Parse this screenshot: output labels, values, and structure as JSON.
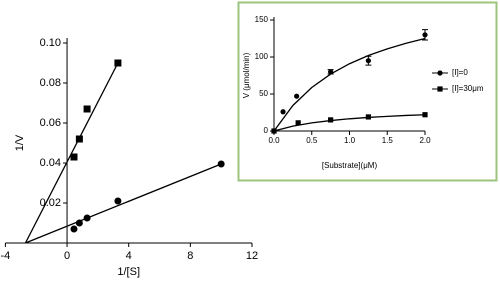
{
  "chart_data": [
    {
      "type": "scatter",
      "ylabel": "1/V",
      "xlabel": "1/[S]",
      "xlim": [
        -4,
        12
      ],
      "ylim": [
        0,
        0.1
      ],
      "xticks": [
        -4,
        0,
        4,
        8,
        12
      ],
      "yticks": [
        0.02,
        0.04,
        0.06,
        0.08,
        {
          "value": 0.1,
          "label": "0.10"
        }
      ],
      "series": [
        {
          "marker": "square",
          "color": "#000000",
          "x": [
            0.45,
            0.8,
            1.3,
            3.3
          ],
          "values": [
            0.043,
            0.052,
            0.067,
            0.09
          ],
          "fit_x": [
            -2.7,
            3.3
          ],
          "fit_y": [
            0,
            0.09
          ]
        },
        {
          "marker": "circle",
          "color": "#000000",
          "x": [
            0.45,
            0.8,
            1.3,
            3.3,
            10
          ],
          "values": [
            0.007,
            0.01,
            0.0125,
            0.021,
            0.0395
          ],
          "fit_x": [
            -2.7,
            10
          ],
          "fit_y": [
            0,
            0.0395
          ]
        }
      ]
    },
    {
      "type": "scatter",
      "ylabel": "V (μmol/min)",
      "xlabel": "[Substrate](μM)",
      "xlim": [
        0,
        2
      ],
      "ylim": [
        0,
        150
      ],
      "xticks": [
        {
          "value": 0,
          "label": "0.0"
        },
        0.5,
        {
          "value": 1,
          "label": "1.0"
        },
        1.5,
        {
          "value": 2,
          "label": "2.0"
        }
      ],
      "yticks": [
        0,
        50,
        100,
        150
      ],
      "series": [
        {
          "name": "[I]=0",
          "marker": "circle",
          "color": "#000000",
          "x": [
            0,
            0.12,
            0.3,
            0.75,
            1.25,
            2
          ],
          "values": [
            0,
            26,
            47,
            80,
            95,
            130
          ],
          "errors": [
            null,
            null,
            null,
            3,
            6,
            7
          ],
          "fit_x": [
            0,
            0.25,
            0.5,
            0.75,
            1,
            1.25,
            1.5,
            1.75,
            2
          ],
          "fit_y": [
            0,
            34.5,
            58.8,
            76.9,
            90.9,
            102,
            111,
            118.6,
            125
          ]
        },
        {
          "name": "[I]=30μm",
          "marker": "square",
          "color": "#000000",
          "x": [
            0,
            0.32,
            0.75,
            1.25,
            2
          ],
          "values": [
            0,
            11,
            15,
            19,
            22
          ],
          "errors": [
            null,
            null,
            null,
            null,
            null
          ],
          "fit_x": [
            0,
            0.25,
            0.5,
            0.75,
            1,
            1.25,
            1.5,
            1.75,
            2
          ],
          "fit_y": [
            0,
            6.6,
            11,
            14.1,
            16.5,
            18.3,
            19.8,
            21,
            22
          ]
        }
      ]
    }
  ]
}
